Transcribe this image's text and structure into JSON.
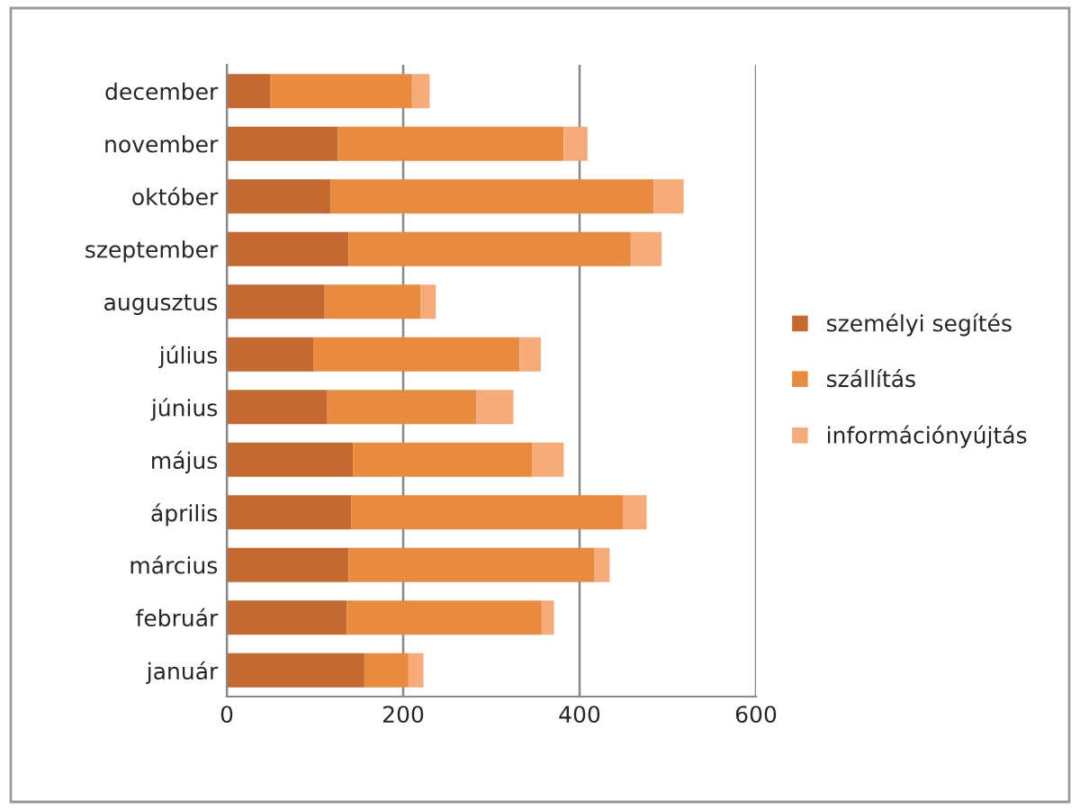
{
  "chart_data": {
    "type": "bar",
    "orientation": "horizontal",
    "stacked": true,
    "categories": [
      "december",
      "november",
      "október",
      "szeptember",
      "augusztus",
      "július",
      "június",
      "május",
      "április",
      "március",
      "február",
      "január"
    ],
    "series": [
      {
        "name": "személyi segítés",
        "color": "#c46a30",
        "values": [
          49,
          126,
          118,
          138,
          111,
          98,
          114,
          143,
          141,
          138,
          136,
          156
        ]
      },
      {
        "name": "szállítás",
        "color": "#e98b3f",
        "values": [
          161,
          256,
          366,
          320,
          109,
          234,
          169,
          203,
          308,
          279,
          221,
          50
        ]
      },
      {
        "name": "információnyújtás",
        "color": "#f6ab7a",
        "values": [
          20,
          27,
          34,
          35,
          17,
          24,
          42,
          36,
          27,
          17,
          14,
          17
        ]
      }
    ],
    "xlim": [
      0,
      600
    ],
    "xticks": [
      0,
      200,
      400,
      600
    ],
    "grid": "x",
    "legend": "right"
  }
}
